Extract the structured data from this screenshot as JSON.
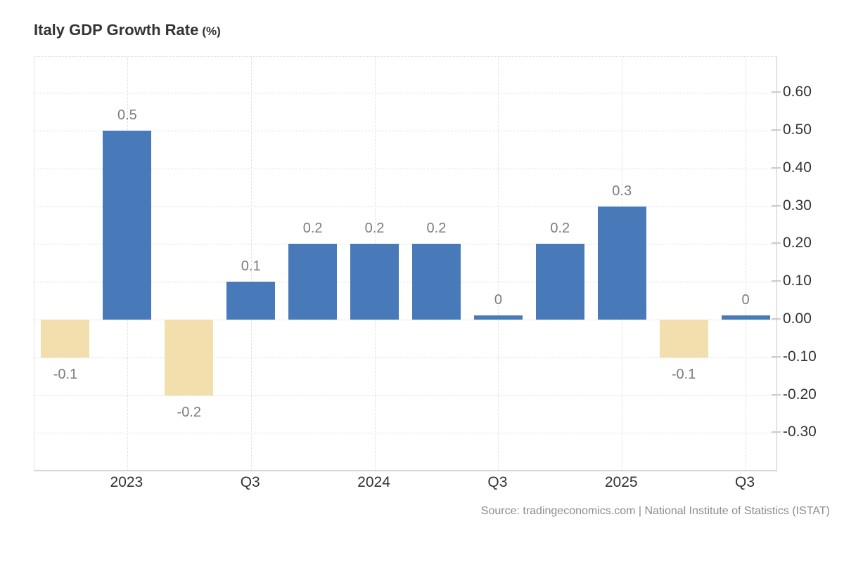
{
  "title": {
    "main": "Italy GDP Growth Rate",
    "unit": "(%)"
  },
  "source": "Source: tradingeconomics.com | National Institute of Statistics (ISTAT)",
  "colors": {
    "bar_positive": "#487ab9",
    "bar_negative": "#f2dfad",
    "gridline": "#dcdcdc",
    "axis_line": "#cccccc",
    "value_label": "#7d7d7d",
    "axis_label": "#333333",
    "source_text": "#8c8c8c"
  },
  "chart_data": {
    "type": "bar",
    "title": "Italy GDP Growth Rate (%)",
    "values": [
      -0.1,
      0.5,
      -0.2,
      0.1,
      0.2,
      0.2,
      0.2,
      0,
      0.2,
      0.3,
      -0.1,
      0
    ],
    "bar_labels": [
      "-0.1",
      "0.5",
      "-0.2",
      "0.1",
      "0.2",
      "0.2",
      "0.2",
      "0",
      "0.2",
      "0.3",
      "-0.1",
      "0"
    ],
    "x_ticks": [
      {
        "label": "2023",
        "bar_index": 1
      },
      {
        "label": "Q3",
        "bar_index": 3
      },
      {
        "label": "2024",
        "bar_index": 5
      },
      {
        "label": "Q3",
        "bar_index": 7
      },
      {
        "label": "2025",
        "bar_index": 9
      },
      {
        "label": "Q3",
        "bar_index": 11
      }
    ],
    "y_ticks": [
      {
        "value": 0.6,
        "label": "0.60"
      },
      {
        "value": 0.5,
        "label": "0.50"
      },
      {
        "value": 0.4,
        "label": "0.40"
      },
      {
        "value": 0.3,
        "label": "0.30"
      },
      {
        "value": 0.2,
        "label": "0.20"
      },
      {
        "value": 0.1,
        "label": "0.10"
      },
      {
        "value": 0.0,
        "label": "0.00"
      },
      {
        "value": -0.1,
        "label": "-0.10"
      },
      {
        "value": -0.2,
        "label": "-0.20"
      },
      {
        "value": -0.3,
        "label": "-0.30"
      }
    ],
    "ylim": [
      -0.39,
      0.69
    ],
    "xlabel": "",
    "ylabel": "",
    "grid": "dotted",
    "legend": "none",
    "positive_color": "#487ab9",
    "negative_color": "#f2dfad"
  }
}
